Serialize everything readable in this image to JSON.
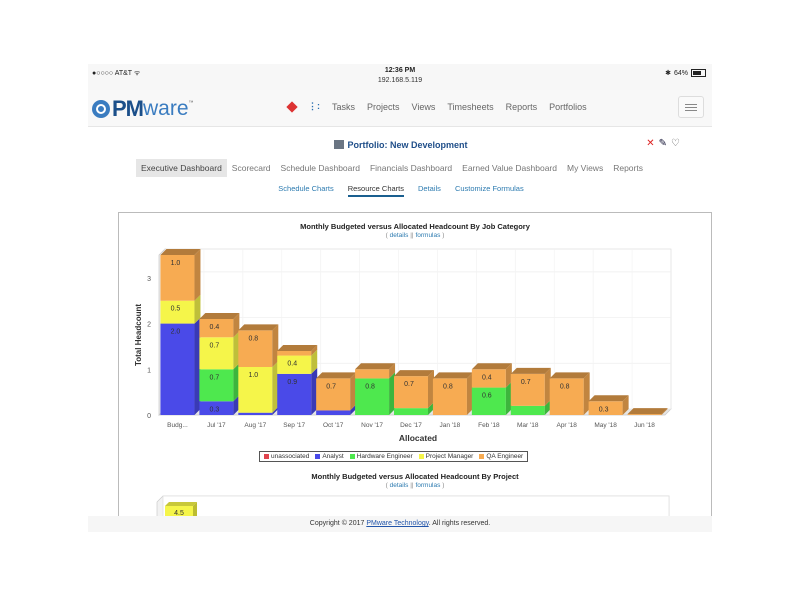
{
  "statusbar": {
    "carrier": "●○○○○ AT&T ᯤ",
    "time": "12:36 PM",
    "url": "192.168.5.119",
    "battery": "64%",
    "bluetooth_icon": "bluetooth-icon"
  },
  "navbar": {
    "logo_pm": "PM",
    "logo_ware": "ware",
    "logo_tm": "™",
    "links": [
      "Tasks",
      "Projects",
      "Views",
      "Timesheets",
      "Reports",
      "Portfolios"
    ]
  },
  "portfolio": {
    "title": "Portfolio: New Development",
    "tools": {
      "delete": "✕",
      "edit": "✎",
      "comment": "♡"
    },
    "tabs": [
      "Executive Dashboard",
      "Scorecard",
      "Schedule Dashboard",
      "Financials Dashboard",
      "Earned Value Dashboard",
      "My Views",
      "Reports"
    ],
    "active_tab": "Executive Dashboard",
    "subtabs": [
      "Schedule Charts",
      "Resource Charts",
      "Details",
      "Customize Formulas"
    ],
    "active_subtab": "Resource Charts"
  },
  "chart1": {
    "title": "Monthly Budgeted versus Allocated Headcount By Job Category",
    "link_details": "details",
    "link_formulas": "formulas",
    "link_open": "(",
    "link_sep": "||",
    "link_close": ")"
  },
  "chart2": {
    "title": "Monthly Budgeted versus Allocated Headcount By Project",
    "link_details": "details",
    "link_formulas": "formulas",
    "link_open": "(",
    "link_sep": "||",
    "link_close": ")",
    "first_bar_label": "4.5"
  },
  "footer": {
    "prefix": "Copyright © 2017 ",
    "link": "PMware Technology",
    "suffix": ". All rights reserved."
  },
  "colors": {
    "unassociated": "#e0444e",
    "Analyst": "#4a4ae8",
    "Hardware Engineer": "#4ee84e",
    "Project Manager": "#f5f54a",
    "QA Engineer": "#f7ab52"
  },
  "chart_data": {
    "type": "bar",
    "stacked": true,
    "title": "Monthly Budgeted versus Allocated Headcount By Job Category",
    "xlabel": "Allocated",
    "ylabel": "Total Headcount",
    "ylim": [
      0,
      3.5
    ],
    "yticks": [
      0,
      1,
      2,
      3
    ],
    "grid": true,
    "legend_position": "bottom",
    "categories": [
      "Budg...",
      "Jul '17",
      "Aug '17",
      "Sep '17",
      "Oct '17",
      "Nov '17",
      "Dec '17",
      "Jan '18",
      "Feb '18",
      "Mar '18",
      "Apr '18",
      "May '18",
      "Jun '18"
    ],
    "series": [
      {
        "name": "unassociated",
        "values": [
          0,
          0,
          0,
          0,
          0,
          0,
          0,
          0,
          0,
          0,
          0,
          0,
          0
        ]
      },
      {
        "name": "Analyst",
        "values": [
          2.0,
          0.3,
          0.05,
          0.9,
          0.1,
          0,
          0,
          0,
          0,
          0,
          0,
          0,
          0
        ]
      },
      {
        "name": "Hardware Engineer",
        "values": [
          0,
          0.7,
          0,
          0,
          0,
          0.8,
          0.15,
          0,
          0.6,
          0.2,
          0,
          0,
          0
        ]
      },
      {
        "name": "Project Manager",
        "values": [
          0.5,
          0.7,
          1.0,
          0.4,
          0,
          0,
          0,
          0,
          0,
          0,
          0,
          0,
          0
        ]
      },
      {
        "name": "QA Engineer",
        "values": [
          1.0,
          0.4,
          0.8,
          0.1,
          0.7,
          0.2,
          0.7,
          0.8,
          0.4,
          0.7,
          0.8,
          0.3,
          0.02
        ]
      }
    ],
    "data_labels": [
      [
        "2.0",
        "0.5",
        "1.0"
      ],
      [
        "0.3",
        "0.7",
        "0.7",
        "0.4"
      ],
      [
        "1.0",
        "0.8"
      ],
      [
        "0.9",
        "0.4"
      ],
      [
        "0.7"
      ],
      [
        "0.8"
      ],
      [
        "0.7"
      ],
      [
        "0.8"
      ],
      [
        "0.6",
        "0.4"
      ],
      [
        "0.7"
      ],
      [
        "0.8"
      ],
      [
        "0.3"
      ],
      []
    ]
  }
}
